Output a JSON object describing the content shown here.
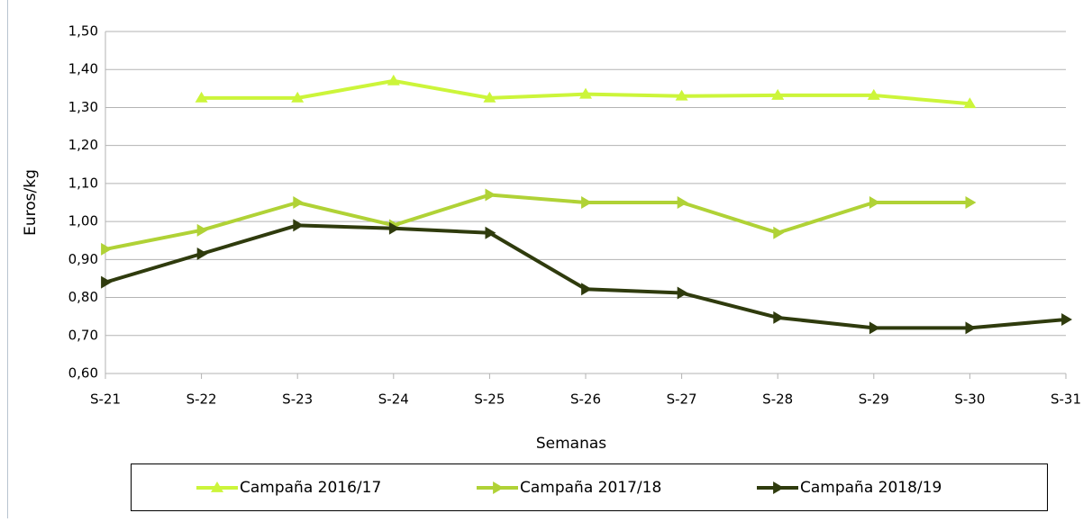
{
  "chart_data": {
    "type": "line",
    "x_label": "Semanas",
    "y_label": "Euros/kg",
    "categories": [
      "S-21",
      "S-22",
      "S-23",
      "S-24",
      "S-25",
      "S-26",
      "S-27",
      "S-28",
      "S-29",
      "S-30",
      "S-31"
    ],
    "series": [
      {
        "name": "Campaña 2016/17",
        "color": "#ccf53a",
        "marker": "triangle-up",
        "values": [
          null,
          1.325,
          1.325,
          1.37,
          1.325,
          1.335,
          1.33,
          1.332,
          1.332,
          1.31,
          null
        ]
      },
      {
        "name": "Campaña 2017/18",
        "color": "#b0d236",
        "marker": "triangle-right",
        "values": [
          0.927,
          0.977,
          1.05,
          0.99,
          1.07,
          1.05,
          1.05,
          0.97,
          1.05,
          1.05,
          null
        ]
      },
      {
        "name": "Campaña 2018/19",
        "color": "#2f3b0d",
        "marker": "triangle-right",
        "values": [
          0.84,
          0.915,
          0.99,
          0.982,
          0.97,
          0.822,
          0.812,
          0.747,
          0.72,
          0.72,
          0.742
        ]
      }
    ],
    "ylim": [
      0.6,
      1.5
    ],
    "yticks": [
      {
        "value": 0.6,
        "label": "0,60"
      },
      {
        "value": 0.7,
        "label": "0,70"
      },
      {
        "value": 0.8,
        "label": "0,80"
      },
      {
        "value": 0.9,
        "label": "0,90"
      },
      {
        "value": 1.0,
        "label": "1,00"
      },
      {
        "value": 1.1,
        "label": "1,10"
      },
      {
        "value": 1.2,
        "label": "1,20"
      },
      {
        "value": 1.3,
        "label": "1,30"
      },
      {
        "value": 1.4,
        "label": "1,40"
      },
      {
        "value": 1.5,
        "label": "1,50"
      }
    ],
    "grid": true,
    "legend": "bottom"
  }
}
